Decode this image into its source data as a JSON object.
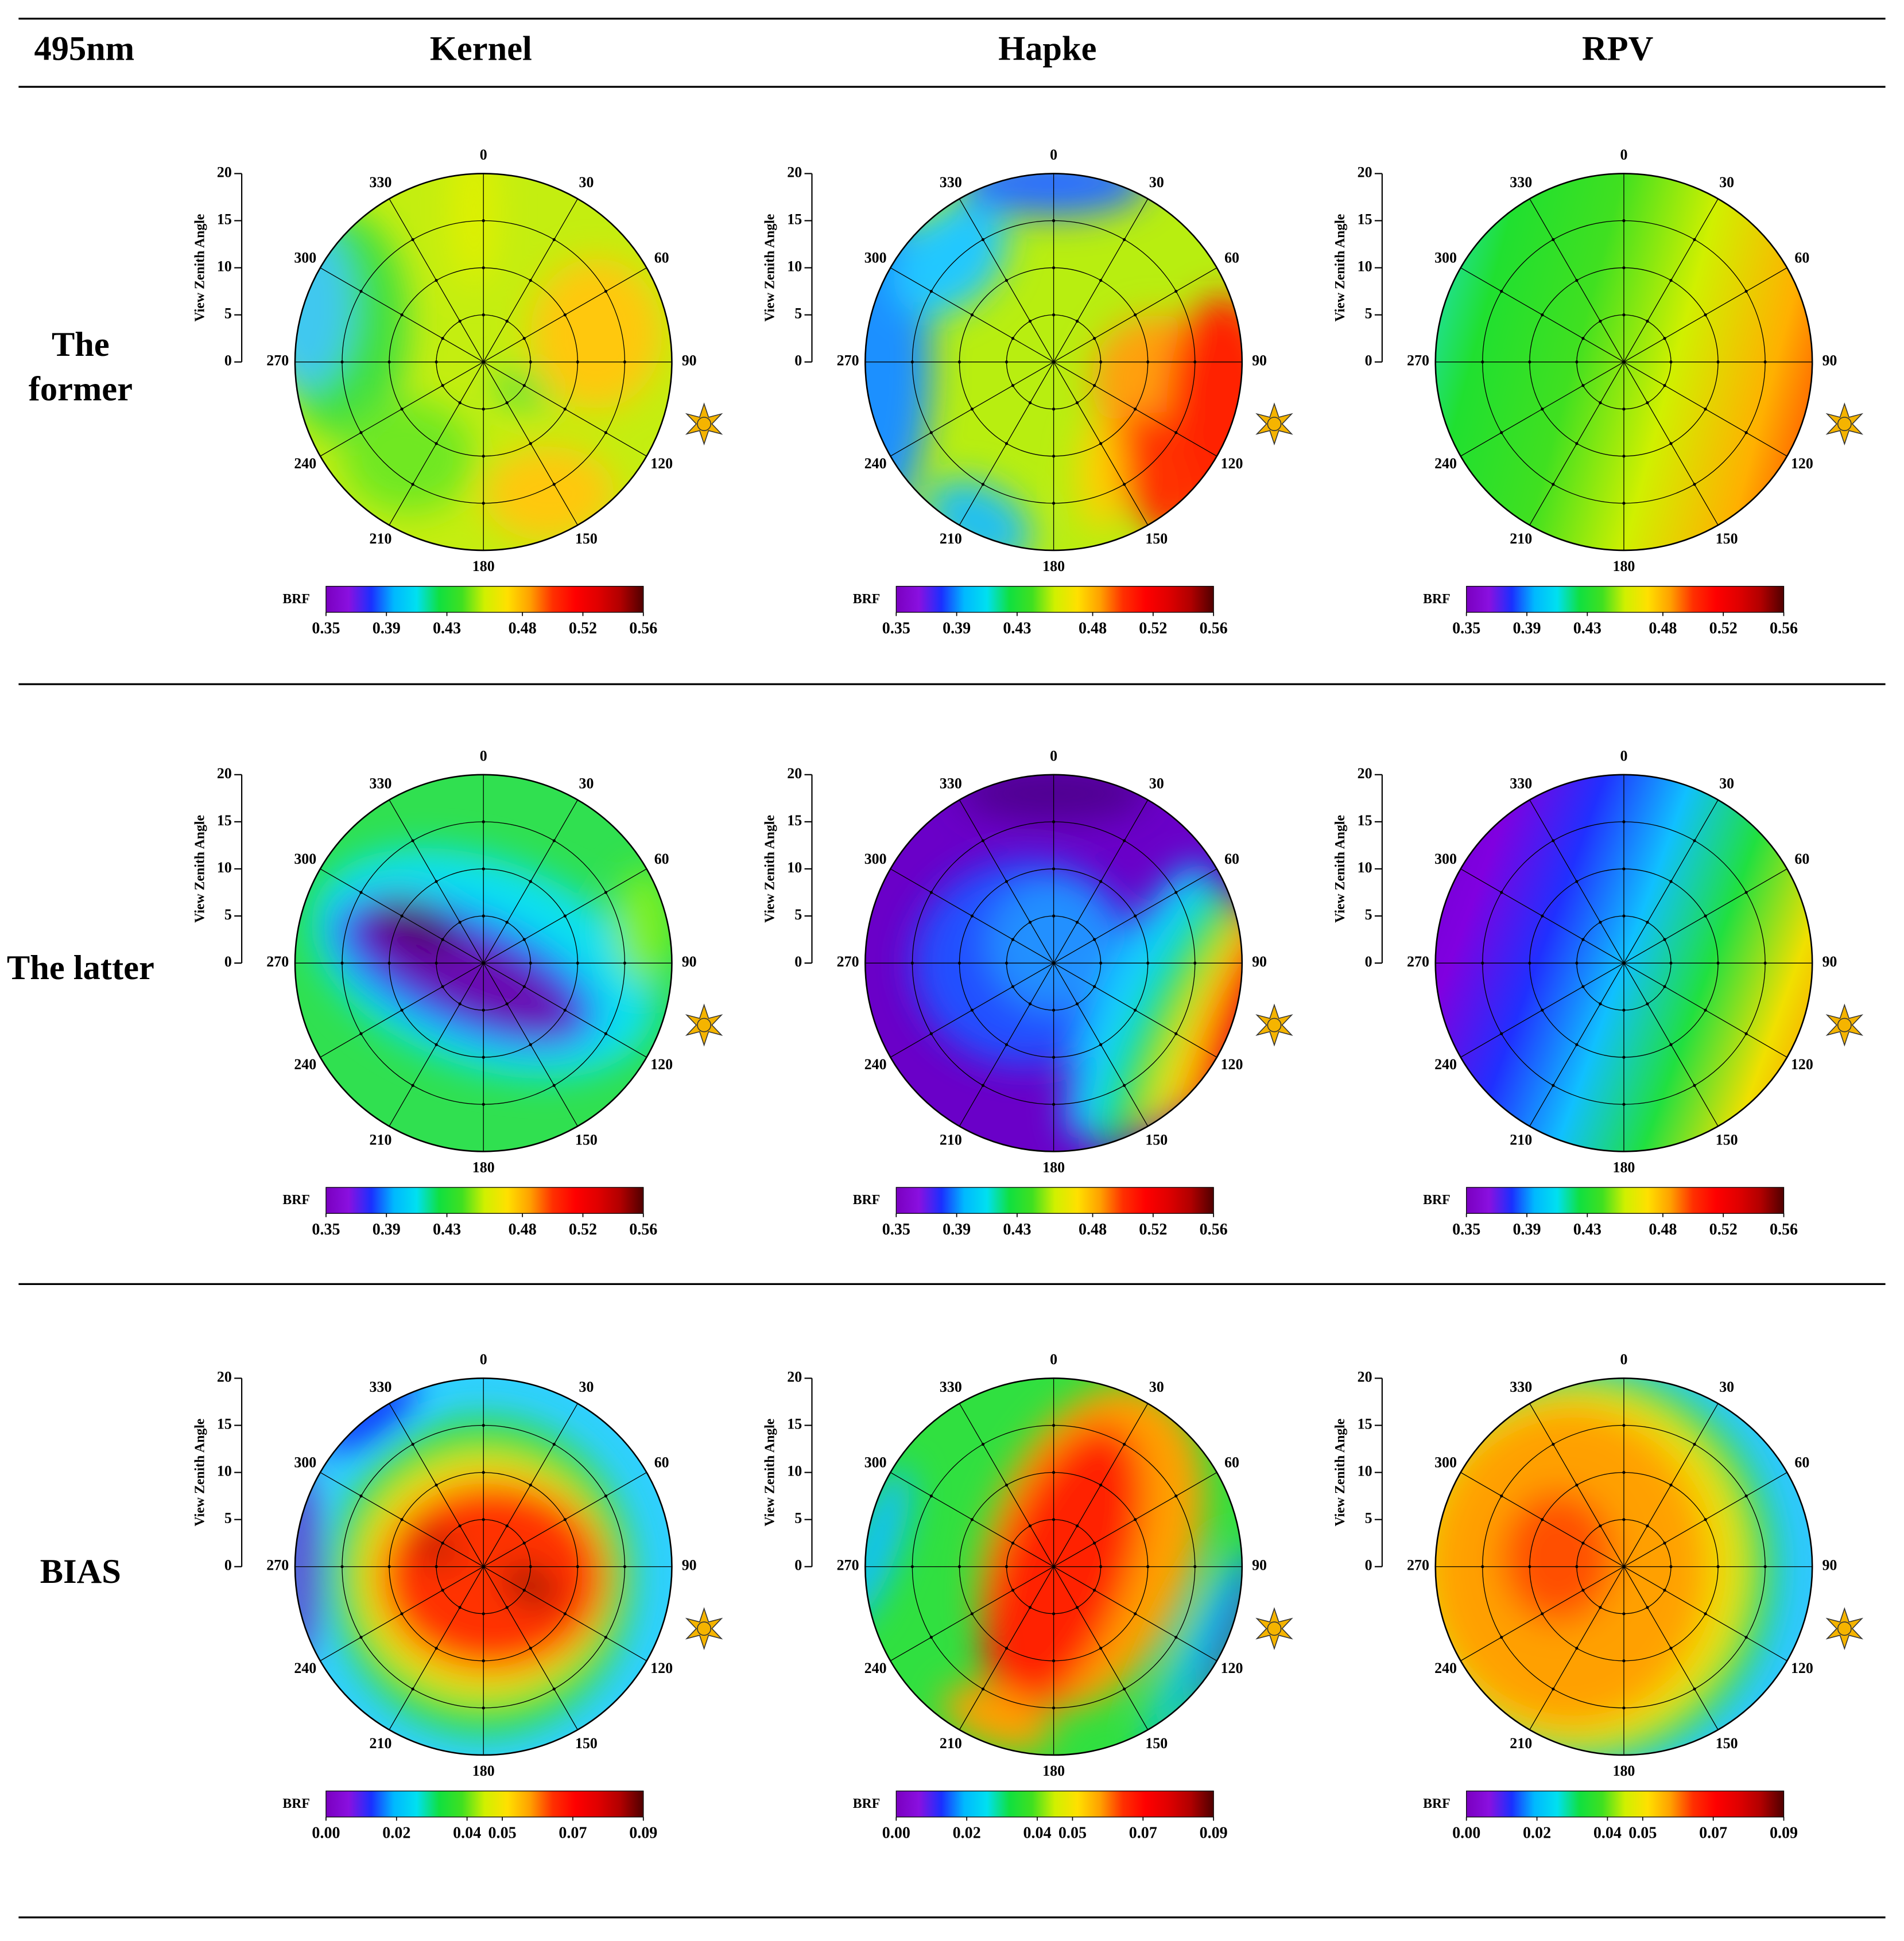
{
  "header": [
    "495nm",
    "Kernel",
    "Hapke",
    "RPV"
  ],
  "polar": {
    "angle_ticks": [
      0,
      30,
      60,
      90,
      120,
      150,
      180,
      210,
      240,
      270,
      300,
      330
    ],
    "radial_label": "View Zenith Angle",
    "rlim": [
      0,
      20
    ],
    "rticks": [
      0,
      5,
      10,
      15,
      20
    ]
  },
  "colorbar_label": "BRF",
  "colormap": [
    "#7a00c0",
    "#8a10e0",
    "#1a30ff",
    "#00b8ff",
    "#00e0f0",
    "#10e040",
    "#40e020",
    "#d0f000",
    "#ffe000",
    "#ffa000",
    "#ff3000",
    "#ff0000",
    "#e00000",
    "#b00000",
    "#500000"
  ],
  "rows": [
    {
      "label": "The former",
      "colorbar": {
        "clim": [
          0.35,
          0.56
        ],
        "ticks": [
          0.35,
          0.39,
          0.43,
          0.48,
          0.52,
          0.56
        ]
      }
    },
    {
      "label": "The latter",
      "colorbar": {
        "clim": [
          0.35,
          0.56
        ],
        "ticks": [
          0.35,
          0.39,
          0.43,
          0.48,
          0.52,
          0.56
        ]
      }
    },
    {
      "label": "BIAS",
      "colorbar": {
        "clim": [
          0,
          0.09
        ],
        "ticks": [
          {
            "value": 0,
            "label": "0.00"
          },
          0.02,
          0.04,
          0.05,
          0.07,
          0.09
        ]
      }
    }
  ]
}
